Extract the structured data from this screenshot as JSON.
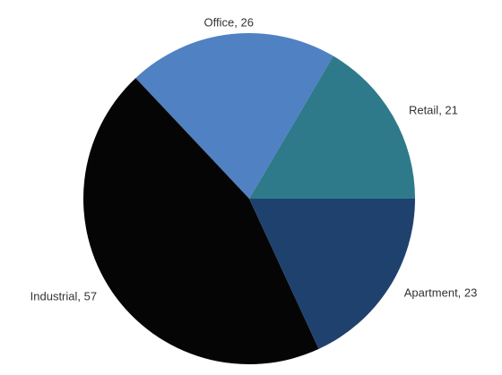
{
  "chart_data": {
    "type": "pie",
    "categories": [
      "Retail",
      "Office",
      "Industrial",
      "Apartment"
    ],
    "values": [
      21,
      26,
      57,
      23
    ],
    "value_labels": [
      "Retail, 21",
      "Office, 26",
      "Industrial, 57",
      "Apartment, 23"
    ],
    "colors": [
      "#2e7a8a",
      "#4f81c3",
      "#050505",
      "#1f416e"
    ]
  }
}
